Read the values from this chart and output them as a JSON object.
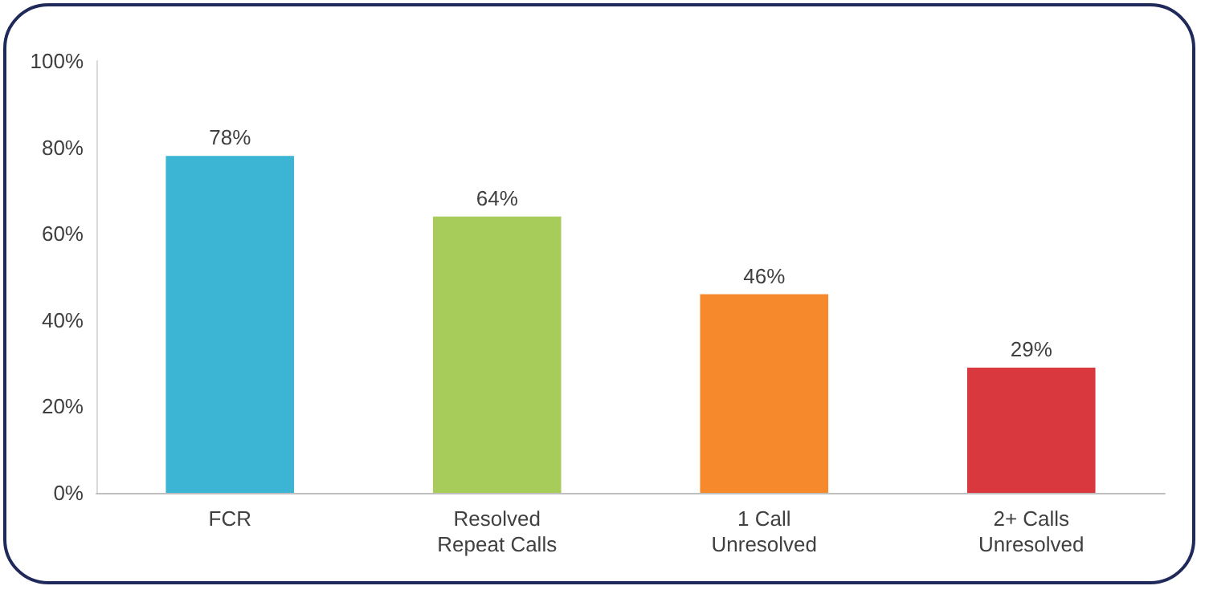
{
  "chart_data": {
    "type": "bar",
    "categories": [
      "FCR",
      "Resolved\nRepeat Calls",
      "1 Call\nUnresolved",
      "2+ Calls\nUnresolved"
    ],
    "values": [
      78,
      64,
      46,
      29
    ],
    "colors": [
      "#3bb5d3",
      "#a8cc5a",
      "#f5892b",
      "#d9393e"
    ],
    "value_labels": [
      "78%",
      "64%",
      "46%",
      "29%"
    ],
    "ylim": [
      0,
      100
    ],
    "yticks": [
      {
        "value": 0,
        "label": "0%"
      },
      {
        "value": 20,
        "label": "20%"
      },
      {
        "value": 40,
        "label": "40%"
      },
      {
        "value": 60,
        "label": "60%"
      },
      {
        "value": 80,
        "label": "80%"
      },
      {
        "value": 100,
        "label": "100%"
      }
    ],
    "grid": false
  }
}
